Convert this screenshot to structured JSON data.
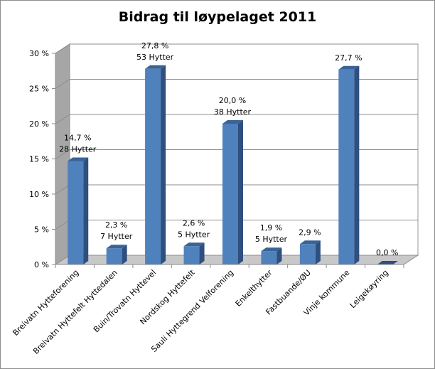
{
  "chart_data": {
    "type": "bar",
    "title": "Bidrag til løypelaget 2011",
    "xlabel": "",
    "ylabel": "",
    "ylim": [
      0,
      30
    ],
    "yticks": [
      "0 %",
      "5 %",
      "10 %",
      "15 %",
      "20 %",
      "25 %",
      "30 %"
    ],
    "grid": true,
    "legend": "none",
    "bar_color": "#4f81bd",
    "categories": [
      "Breivatn Hytteforening",
      "Breivatn Hyttefelt Hyttedalen",
      "Buin/Trovatn Hyttevel",
      "Nordskog Hyttefelt",
      "Sauli Hyttegrend Velforening",
      "Enkelthytter",
      "Fastbuande/ØU",
      "Vinje kommune",
      "Leigekøyring"
    ],
    "values": [
      14.7,
      2.3,
      27.8,
      2.6,
      20.0,
      1.9,
      2.9,
      27.7,
      0.0
    ],
    "value_labels": [
      "14,7 %",
      "2,3 %",
      "27,8 %",
      "2,6 %",
      "20,0 %",
      "1,9 %",
      "2,9 %",
      "27,7 %",
      "0,0 %"
    ],
    "sub_labels": [
      "28 Hytter",
      "7 Hytter",
      "53 Hytter",
      "5 Hytter",
      "38 Hytter",
      "5 Hytter",
      "",
      "",
      ""
    ]
  }
}
